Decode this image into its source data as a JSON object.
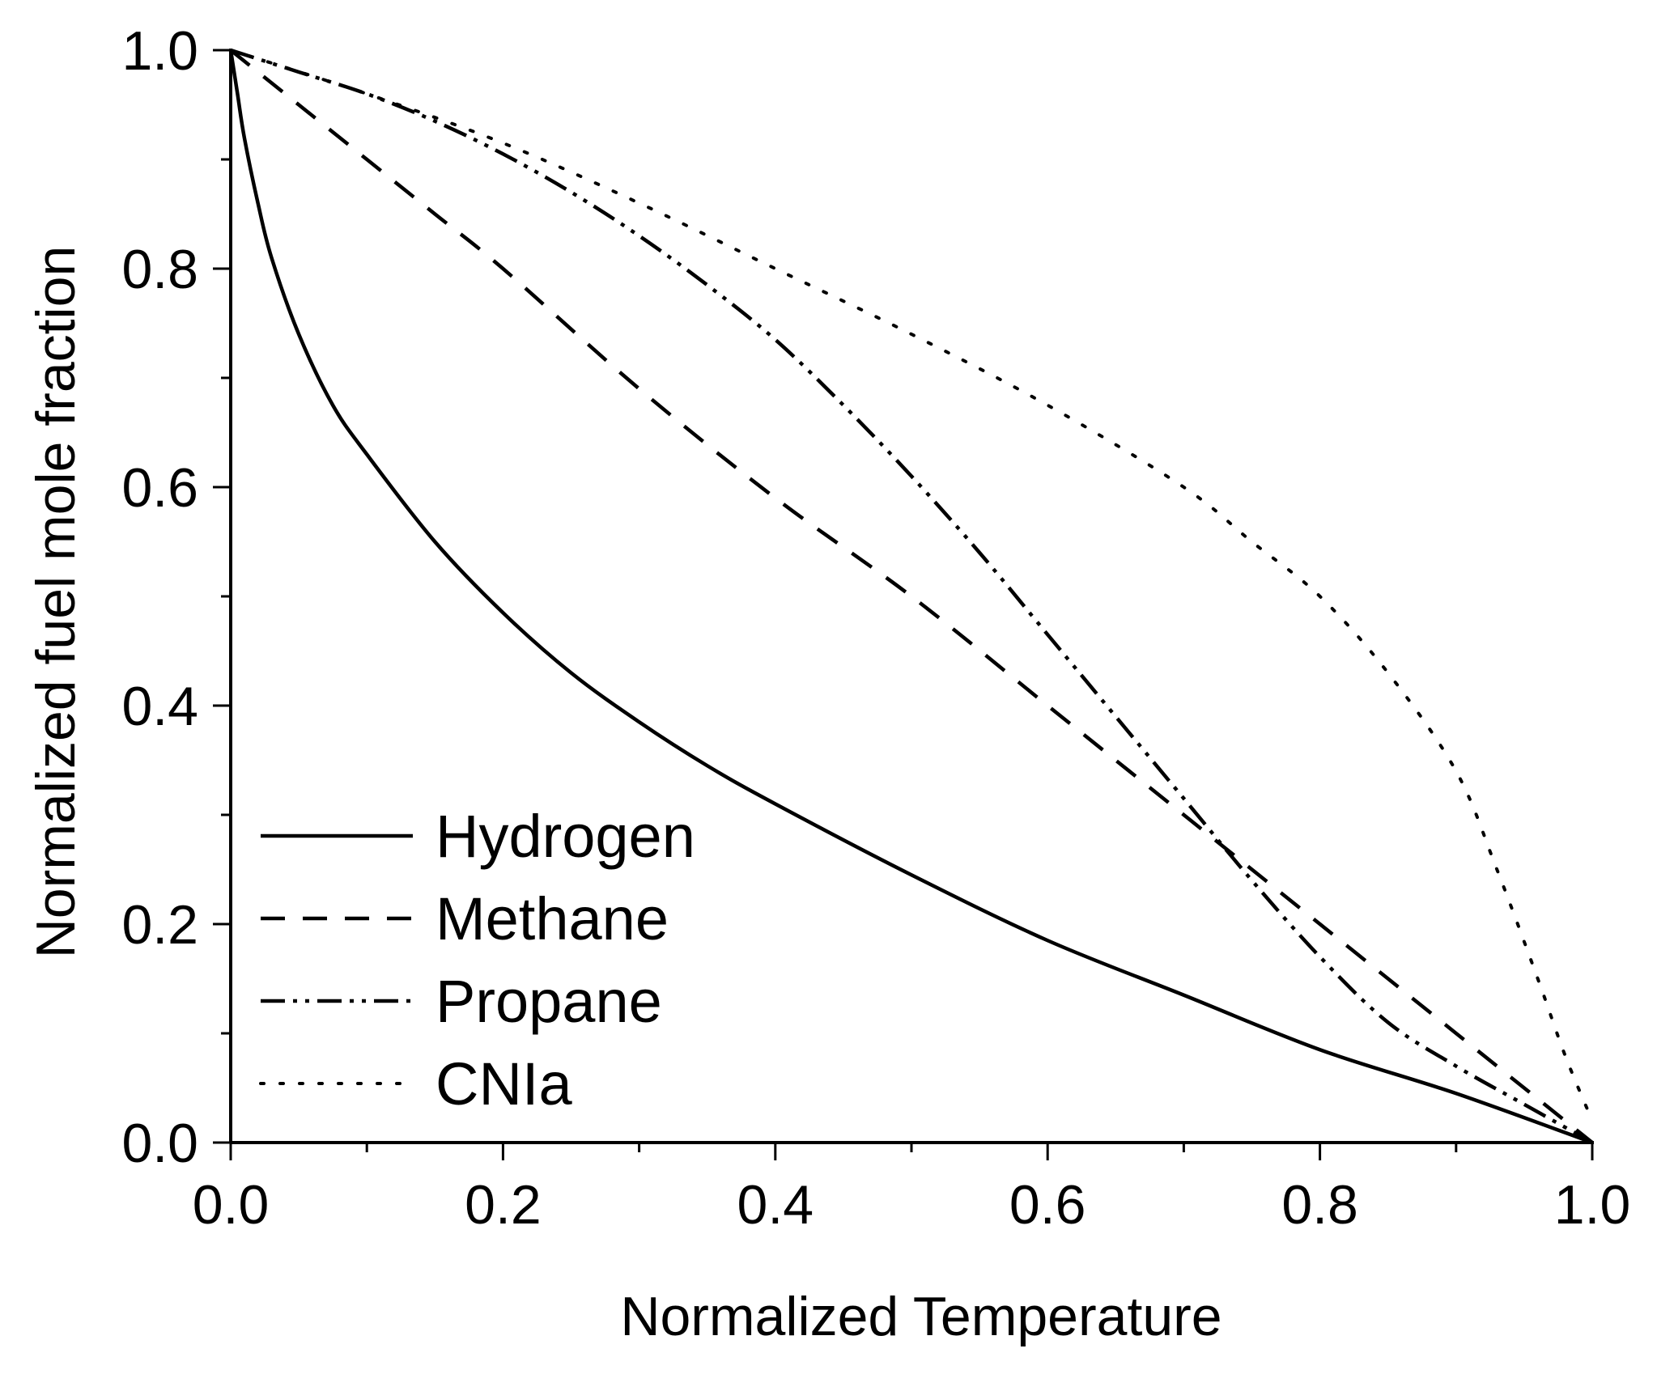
{
  "chart_data": {
    "type": "line",
    "title": "",
    "xlabel": "Normalized Temperature",
    "ylabel": "Normalized fuel mole fraction",
    "xlim": [
      0,
      1
    ],
    "ylim": [
      0,
      1
    ],
    "x_ticks": [
      "0.0",
      "0.2",
      "0.4",
      "0.6",
      "0.8",
      "1.0"
    ],
    "y_ticks": [
      "0.0",
      "0.2",
      "0.4",
      "0.6",
      "0.8",
      "1.0"
    ],
    "grid": false,
    "legend_position": "bottom-left",
    "line_color": "#000000",
    "series": [
      {
        "name": "Hydrogen",
        "style": "solid",
        "x": [
          0,
          0.005,
          0.01,
          0.02,
          0.03,
          0.05,
          0.075,
          0.1,
          0.15,
          0.2,
          0.25,
          0.3,
          0.35,
          0.4,
          0.5,
          0.6,
          0.7,
          0.8,
          0.9,
          1.0
        ],
        "y": [
          1.0,
          0.96,
          0.92,
          0.86,
          0.81,
          0.74,
          0.675,
          0.63,
          0.55,
          0.485,
          0.43,
          0.385,
          0.345,
          0.31,
          0.245,
          0.185,
          0.135,
          0.085,
          0.045,
          0.0
        ]
      },
      {
        "name": "Methane",
        "style": "dashed",
        "x": [
          0,
          0.05,
          0.1,
          0.15,
          0.2,
          0.3,
          0.4,
          0.5,
          0.6,
          0.7,
          0.8,
          0.9,
          0.97,
          1.0
        ],
        "y": [
          1.0,
          0.95,
          0.9,
          0.85,
          0.8,
          0.69,
          0.59,
          0.5,
          0.4,
          0.3,
          0.2,
          0.1,
          0.03,
          0.0
        ]
      },
      {
        "name": "Propane",
        "style": "dash-dot-dot",
        "x": [
          0,
          0.05,
          0.1,
          0.15,
          0.2,
          0.25,
          0.3,
          0.35,
          0.4,
          0.45,
          0.5,
          0.55,
          0.6,
          0.65,
          0.7,
          0.75,
          0.8,
          0.85,
          0.9,
          0.95,
          1.0
        ],
        "y": [
          1.0,
          0.98,
          0.96,
          0.935,
          0.905,
          0.87,
          0.83,
          0.785,
          0.735,
          0.675,
          0.61,
          0.54,
          0.465,
          0.39,
          0.315,
          0.24,
          0.17,
          0.11,
          0.07,
          0.035,
          0.0
        ]
      },
      {
        "name": "CNIa",
        "style": "dotted",
        "x": [
          0,
          0.1,
          0.2,
          0.3,
          0.4,
          0.5,
          0.6,
          0.7,
          0.75,
          0.8,
          0.85,
          0.9,
          0.93,
          0.96,
          0.98,
          1.0
        ],
        "y": [
          1.0,
          0.96,
          0.915,
          0.86,
          0.8,
          0.74,
          0.675,
          0.6,
          0.55,
          0.5,
          0.43,
          0.34,
          0.25,
          0.15,
          0.08,
          0.02
        ]
      }
    ]
  }
}
